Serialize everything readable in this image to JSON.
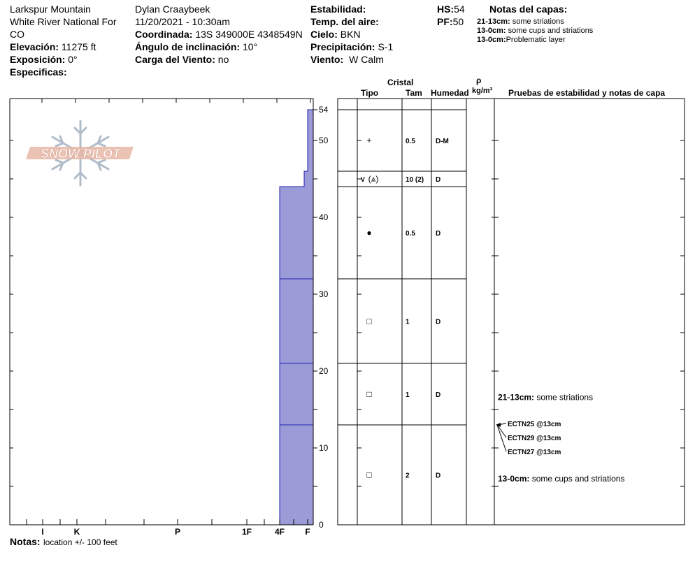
{
  "header": {
    "location_line1": "Larkspur Mountain",
    "location_line2": "White River National For",
    "location_line3": "CO",
    "elevation_label": "Elevación:",
    "elevation_value": "11275 ft",
    "aspect_label": "Exposición:",
    "aspect_value": "0°",
    "specifics_label": "Especificas:",
    "observer": "Dylan Craaybeek",
    "datetime": "11/20/2021 - 10:30am",
    "coord_label": "Coordinada:",
    "coord_value": "13S 349000E 4348549N",
    "slope_label": "Ángulo de inclinación:",
    "slope_value": "10°",
    "wind_load_label": "Carga del Viento:",
    "wind_load_value": "no",
    "stability_label": "Estabilidad:",
    "air_temp_label": "Temp. del aire:",
    "sky_label": "Cielo:",
    "sky_value": "BKN",
    "precip_label": "Precipitación:",
    "precip_value": "S-1",
    "wind_label": "Viento:",
    "wind_value": "W Calm",
    "hs_label": "HS:",
    "hs_value": "54",
    "pf_label": "PF:",
    "pf_value": "50",
    "layer_notes_title": "Notas del capas:",
    "layer_notes": [
      {
        "range": "21-13cm:",
        "text": "some striations"
      },
      {
        "range": "13-0cm:",
        "text": "some cups and striations"
      },
      {
        "range": "13-0cm:",
        "text": "Problematic layer"
      }
    ]
  },
  "footer": {
    "notes_label": "Notas:",
    "notes_value": "location +/- 100 feet"
  },
  "logo_text": "SNOW PILOT",
  "table_headers": {
    "crystal": "Cristal",
    "type": "Tipo",
    "size": "Tam",
    "moisture": "Humedad",
    "rho": "ρ",
    "density_unit": "kg/m³",
    "tests_notes": "Pruebas de estabilidad y notas de capa"
  },
  "colors": {
    "hardness_fill": "#9b9bd8",
    "layer_line": "#2020b0",
    "logo": "#e8b8a8",
    "snowflake": "#b0bcc8"
  },
  "chart_data": {
    "type": "bar",
    "title": "",
    "ylabel": "",
    "xlabel": "",
    "ylim": [
      0,
      54
    ],
    "height_ticks": [
      0,
      10,
      20,
      30,
      40,
      50,
      54
    ],
    "height_tick_labels": [
      "0",
      "10",
      "20",
      "30",
      "40",
      "50",
      "54"
    ],
    "hardness_scale": [
      "I",
      "K",
      "P",
      "1F",
      "4F",
      "F"
    ],
    "hardness_tick_labels": [
      "I",
      "K",
      "P",
      "1F",
      "4F",
      "F"
    ],
    "hardness_profile": [
      {
        "bottom": 0,
        "top": 44,
        "hardness": "4F"
      },
      {
        "bottom": 44,
        "top": 46,
        "hardness": "F+"
      },
      {
        "bottom": 46,
        "top": 54,
        "hardness": "F"
      }
    ],
    "layer_boundaries": [
      13,
      21,
      32
    ],
    "layers": [
      {
        "top": 54,
        "bottom": 46,
        "type": "+",
        "size": "0.5",
        "moisture": "D-M"
      },
      {
        "top": 46,
        "bottom": 44,
        "type": "∨ (⩓)",
        "size": "10 (2)",
        "moisture": "D"
      },
      {
        "top": 44,
        "bottom": 32,
        "type": "●",
        "size": "0.5",
        "moisture": "D"
      },
      {
        "top": 32,
        "bottom": 21,
        "type": "□",
        "size": "1",
        "moisture": "D"
      },
      {
        "top": 21,
        "bottom": 13,
        "type": "□",
        "size": "1",
        "moisture": "D"
      },
      {
        "top": 13,
        "bottom": 0,
        "type": "□",
        "size": "2",
        "moisture": "D"
      }
    ],
    "layer_comments": [
      {
        "range": "21-13cm:",
        "text": "some striations",
        "height": 16.6
      },
      {
        "range": "13-0cm:",
        "text": "some cups and striations",
        "height": 6
      }
    ],
    "stability_tests": [
      {
        "label": "ECTN25 @13cm",
        "depth": 13
      },
      {
        "label": "ECTN29 @13cm",
        "depth": 13
      },
      {
        "label": "ECTN27 @13cm",
        "depth": 13
      }
    ]
  }
}
